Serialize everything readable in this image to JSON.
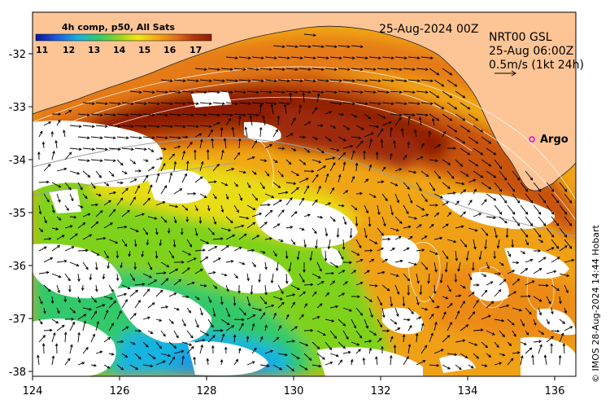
{
  "chart_data": {
    "type": "heatmap",
    "title": "4h comp, p50, All Sats",
    "date_label": "25-Aug-2024 00Z",
    "current_info": {
      "source": "NRT00 GSL",
      "time": "25-Aug 06:00Z",
      "scale": "0.5m/s (1kt 24h)"
    },
    "colorbar": {
      "ticks": [
        11,
        12,
        13,
        14,
        15,
        16,
        17
      ],
      "colors": [
        "#08149a",
        "#1d5be0",
        "#16b4e0",
        "#33c96b",
        "#9ad61c",
        "#f0e515",
        "#f0a515",
        "#e0701a",
        "#b3360c",
        "#8e1e06"
      ]
    },
    "x_axis": {
      "ticks": [
        "124",
        "126",
        "128",
        "130",
        "132",
        "134",
        "136"
      ],
      "range": [
        124,
        136.5
      ]
    },
    "y_axis": {
      "ticks": [
        "-32",
        "-33",
        "-34",
        "-35",
        "-36",
        "-37",
        "-38"
      ],
      "range": [
        -38.1,
        -31.3
      ]
    },
    "markers": [
      {
        "label": "Argo",
        "lon": 135.5,
        "lat": -33.6,
        "color": "#e000e0"
      }
    ],
    "land_color": "#fdc596",
    "no_data_color": "#ffffff",
    "credit": "© IMOS 28-Aug-2024 14:44 Hobart"
  }
}
